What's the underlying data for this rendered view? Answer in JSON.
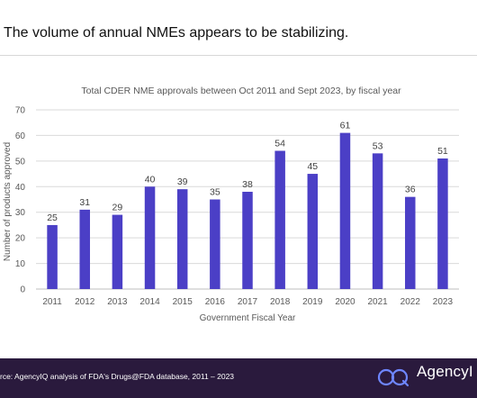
{
  "headline": "The volume of annual NMEs appears to be stabilizing.",
  "footer": {
    "source": "rce: AgencyIQ analysis of FDA's Drugs@FDA database, 2011 – 2023",
    "brand": "AgencyI"
  },
  "colors": {
    "bar": "#4b3fc6",
    "footer_bg": "#2a1a3d",
    "grid": "#d9d9d9",
    "text": "#595959"
  },
  "chart_data": {
    "type": "bar",
    "title": "Total CDER NME approvals between Oct 2011 and Sept 2023, by fiscal year",
    "xlabel": "Government Fiscal Year",
    "ylabel": "Number of products approved",
    "categories": [
      "2011",
      "2012",
      "2013",
      "2014",
      "2015",
      "2016",
      "2017",
      "2018",
      "2019",
      "2020",
      "2021",
      "2022",
      "2023"
    ],
    "values": [
      25,
      31,
      29,
      40,
      39,
      35,
      38,
      54,
      45,
      61,
      53,
      36,
      51
    ],
    "ylim": [
      0,
      70
    ],
    "yticks": [
      0,
      10,
      20,
      30,
      40,
      50,
      60,
      70
    ],
    "grid": true,
    "legend": "none"
  }
}
